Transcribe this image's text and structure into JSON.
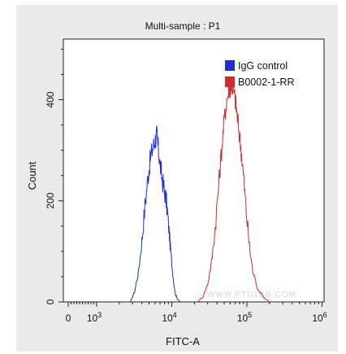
{
  "chart_data": {
    "type": "line",
    "title": "Multi-sample : P1",
    "xlabel": "FITC-A",
    "ylabel": "Count",
    "xscale": "log-ish (biexponential)",
    "x_ticks": [
      {
        "value": 0,
        "label": "0"
      },
      {
        "value": 1000,
        "label": "10",
        "sup": "3"
      },
      {
        "value": 10000,
        "label": "10",
        "sup": "4"
      },
      {
        "value": 100000,
        "label": "10",
        "sup": "5"
      },
      {
        "value": 1000000,
        "label": "10",
        "sup": "6"
      }
    ],
    "y_ticks": [
      {
        "value": 0,
        "label": "0"
      },
      {
        "value": 200,
        "label": "200"
      },
      {
        "value": 400,
        "label": "400"
      }
    ],
    "ylim": [
      0,
      520
    ],
    "legend_position": "top-right",
    "series": [
      {
        "name": "IgG control",
        "color": "#1a2fd6",
        "x": [
          2800,
          3200,
          3600,
          4000,
          4400,
          4800,
          5200,
          5600,
          6000,
          6300,
          6600,
          7000,
          7500,
          8000,
          8600,
          9200,
          9800,
          10500,
          11200,
          12000,
          13000
        ],
        "y": [
          0,
          20,
          60,
          120,
          190,
          245,
          285,
          305,
          320,
          330,
          305,
          270,
          240,
          220,
          190,
          140,
          90,
          45,
          15,
          5,
          0
        ]
      },
      {
        "name": "B0002-1-RR",
        "color": "#d42a2a",
        "x": [
          22000,
          26000,
          30000,
          34000,
          38000,
          42000,
          46000,
          50000,
          54000,
          58000,
          62000,
          66000,
          70000,
          74000,
          78000,
          84000,
          90000,
          98000,
          108000,
          120000,
          140000,
          170000,
          200000
        ],
        "y": [
          0,
          10,
          35,
          80,
          150,
          230,
          300,
          360,
          400,
          420,
          430,
          420,
          400,
          370,
          340,
          300,
          250,
          180,
          110,
          60,
          25,
          8,
          0
        ]
      }
    ],
    "watermark": "WWW.PTGLAB.COM"
  }
}
